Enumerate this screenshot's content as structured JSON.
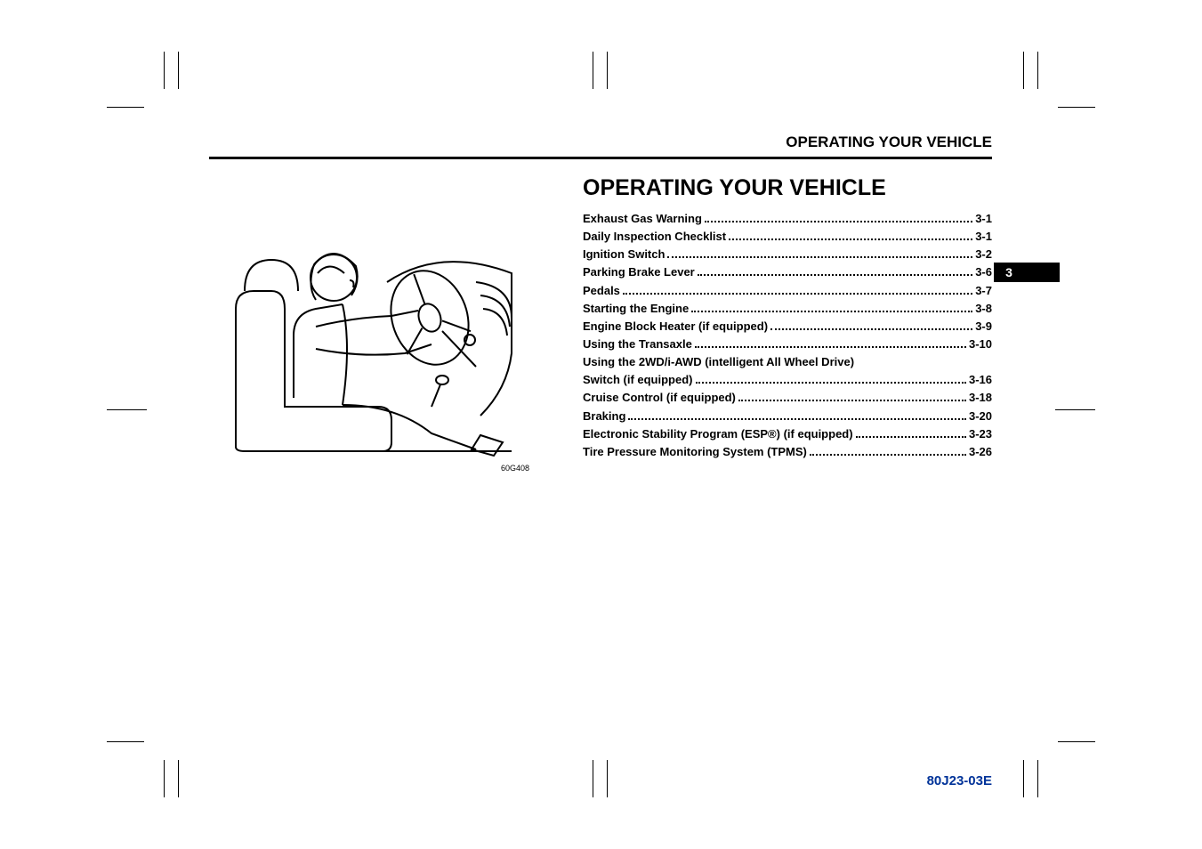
{
  "header": "OPERATING YOUR VEHICLE",
  "section_title": "OPERATING YOUR VEHICLE",
  "illustration_code": "60G408",
  "tab_number": "3",
  "doc_code": "80J23-03E",
  "toc": [
    {
      "label": "Exhaust Gas Warning",
      "page": "3-1"
    },
    {
      "label": "Daily Inspection Checklist",
      "page": "3-1"
    },
    {
      "label": "Ignition Switch",
      "page": "3-2"
    },
    {
      "label": "Parking Brake Lever",
      "page": "3-6"
    },
    {
      "label": "Pedals",
      "page": "3-7"
    },
    {
      "label": "Starting the Engine",
      "page": "3-8"
    },
    {
      "label": "Engine Block Heater (if equipped)",
      "page": "3-9"
    },
    {
      "label": "Using the Transaxle",
      "page": "3-10"
    },
    {
      "label": "Using the 2WD/i-AWD (intelligent All Wheel Drive) Switch (if equipped)",
      "page": "3-16",
      "wrap": true
    },
    {
      "label": "Cruise Control (if equipped)",
      "page": "3-18"
    },
    {
      "label": "Braking",
      "page": "3-20"
    },
    {
      "label": "Electronic Stability Program (ESP®) (if equipped)",
      "page": "3-23"
    },
    {
      "label": "Tire Pressure Monitoring System (TPMS)",
      "page": "3-26"
    }
  ]
}
